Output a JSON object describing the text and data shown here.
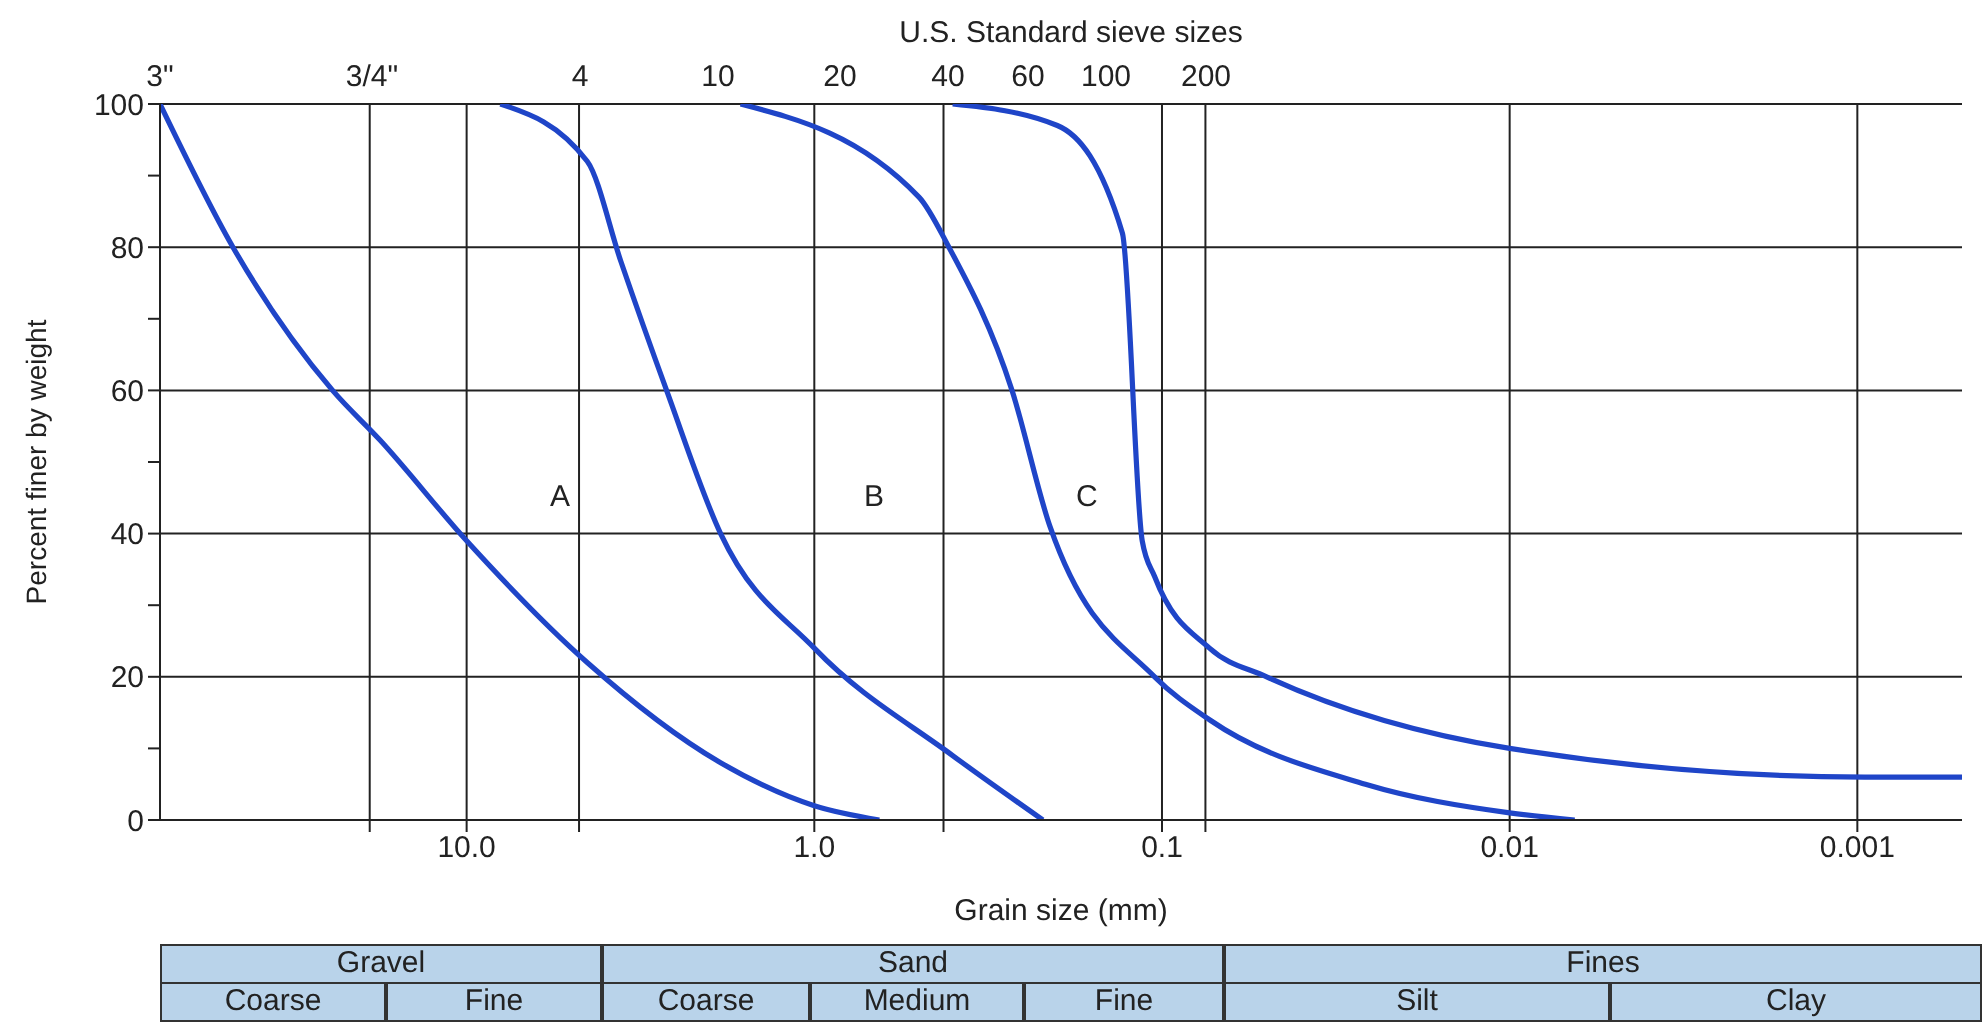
{
  "chart_data": {
    "type": "line",
    "x2label": "U.S. Standard sieve sizes",
    "xlabel": "Grain size (mm)",
    "ylabel": "Percent finer by weight",
    "log": "x",
    "grid": true,
    "marker": "none",
    "line_style": "solid",
    "legend": false,
    "xlim": [
      76.2,
      0.0005
    ],
    "xticks": [
      {
        "value": 19,
        "label": null
      },
      {
        "value": 10,
        "label": "10.0"
      },
      {
        "value": 4.75,
        "label": null
      },
      {
        "value": 1,
        "label": "1.0"
      },
      {
        "value": 0.425,
        "label": null
      },
      0.1,
      {
        "value": 0.075,
        "label": null
      },
      0.01,
      0.001
    ],
    "ylim": [
      0,
      100
    ],
    "yticks": [
      0,
      {
        "value": 10,
        "label": null
      },
      20,
      {
        "value": 30,
        "label": null
      },
      40,
      {
        "value": 50,
        "label": null
      },
      60,
      {
        "value": 70,
        "label": null
      },
      80,
      {
        "value": 90,
        "label": null
      },
      100
    ],
    "series": [
      {
        "color": "#1f45c8",
        "x": [
          76.2,
          47,
          24.3,
          17.7,
          10,
          4.5,
          1.86,
          1.0,
          0.65
        ],
        "values": [
          100,
          80,
          60,
          53,
          39,
          22,
          8,
          2,
          0
        ]
      },
      {
        "color": "#1f45c8",
        "x": [
          8.0,
          4.5,
          3.6,
          2.66,
          1.86,
          1.0,
          0.4,
          0.22
        ],
        "values": [
          100,
          92,
          78,
          60,
          40,
          24,
          9,
          0
        ]
      },
      {
        "color": "#1f45c8",
        "x": [
          1.63,
          0.5,
          0.41,
          0.27,
          0.21,
          0.105,
          0.073,
          0.026,
          0.01,
          0.0065
        ],
        "values": [
          100,
          87,
          80,
          60,
          41,
          20,
          14,
          5,
          1,
          0
        ]
      },
      {
        "color": "#1f45c8",
        "x": [
          0.4,
          0.2,
          0.13,
          0.114,
          0.105,
          0.073,
          0.05,
          0.01,
          0.00095,
          0.0005
        ],
        "values": [
          100,
          97,
          82,
          39,
          34,
          24,
          20,
          10,
          6,
          6
        ]
      }
    ],
    "annotations": [
      "3\"",
      "3/4\"",
      "4",
      "10",
      "20",
      "40",
      "60",
      "100",
      "200",
      "A",
      "B",
      "C",
      "Gravel",
      "Coarse",
      "Fine",
      "Sand",
      "Coarse",
      "Medium",
      "Fine",
      "Fines",
      "Silt",
      "Clay"
    ]
  }
}
